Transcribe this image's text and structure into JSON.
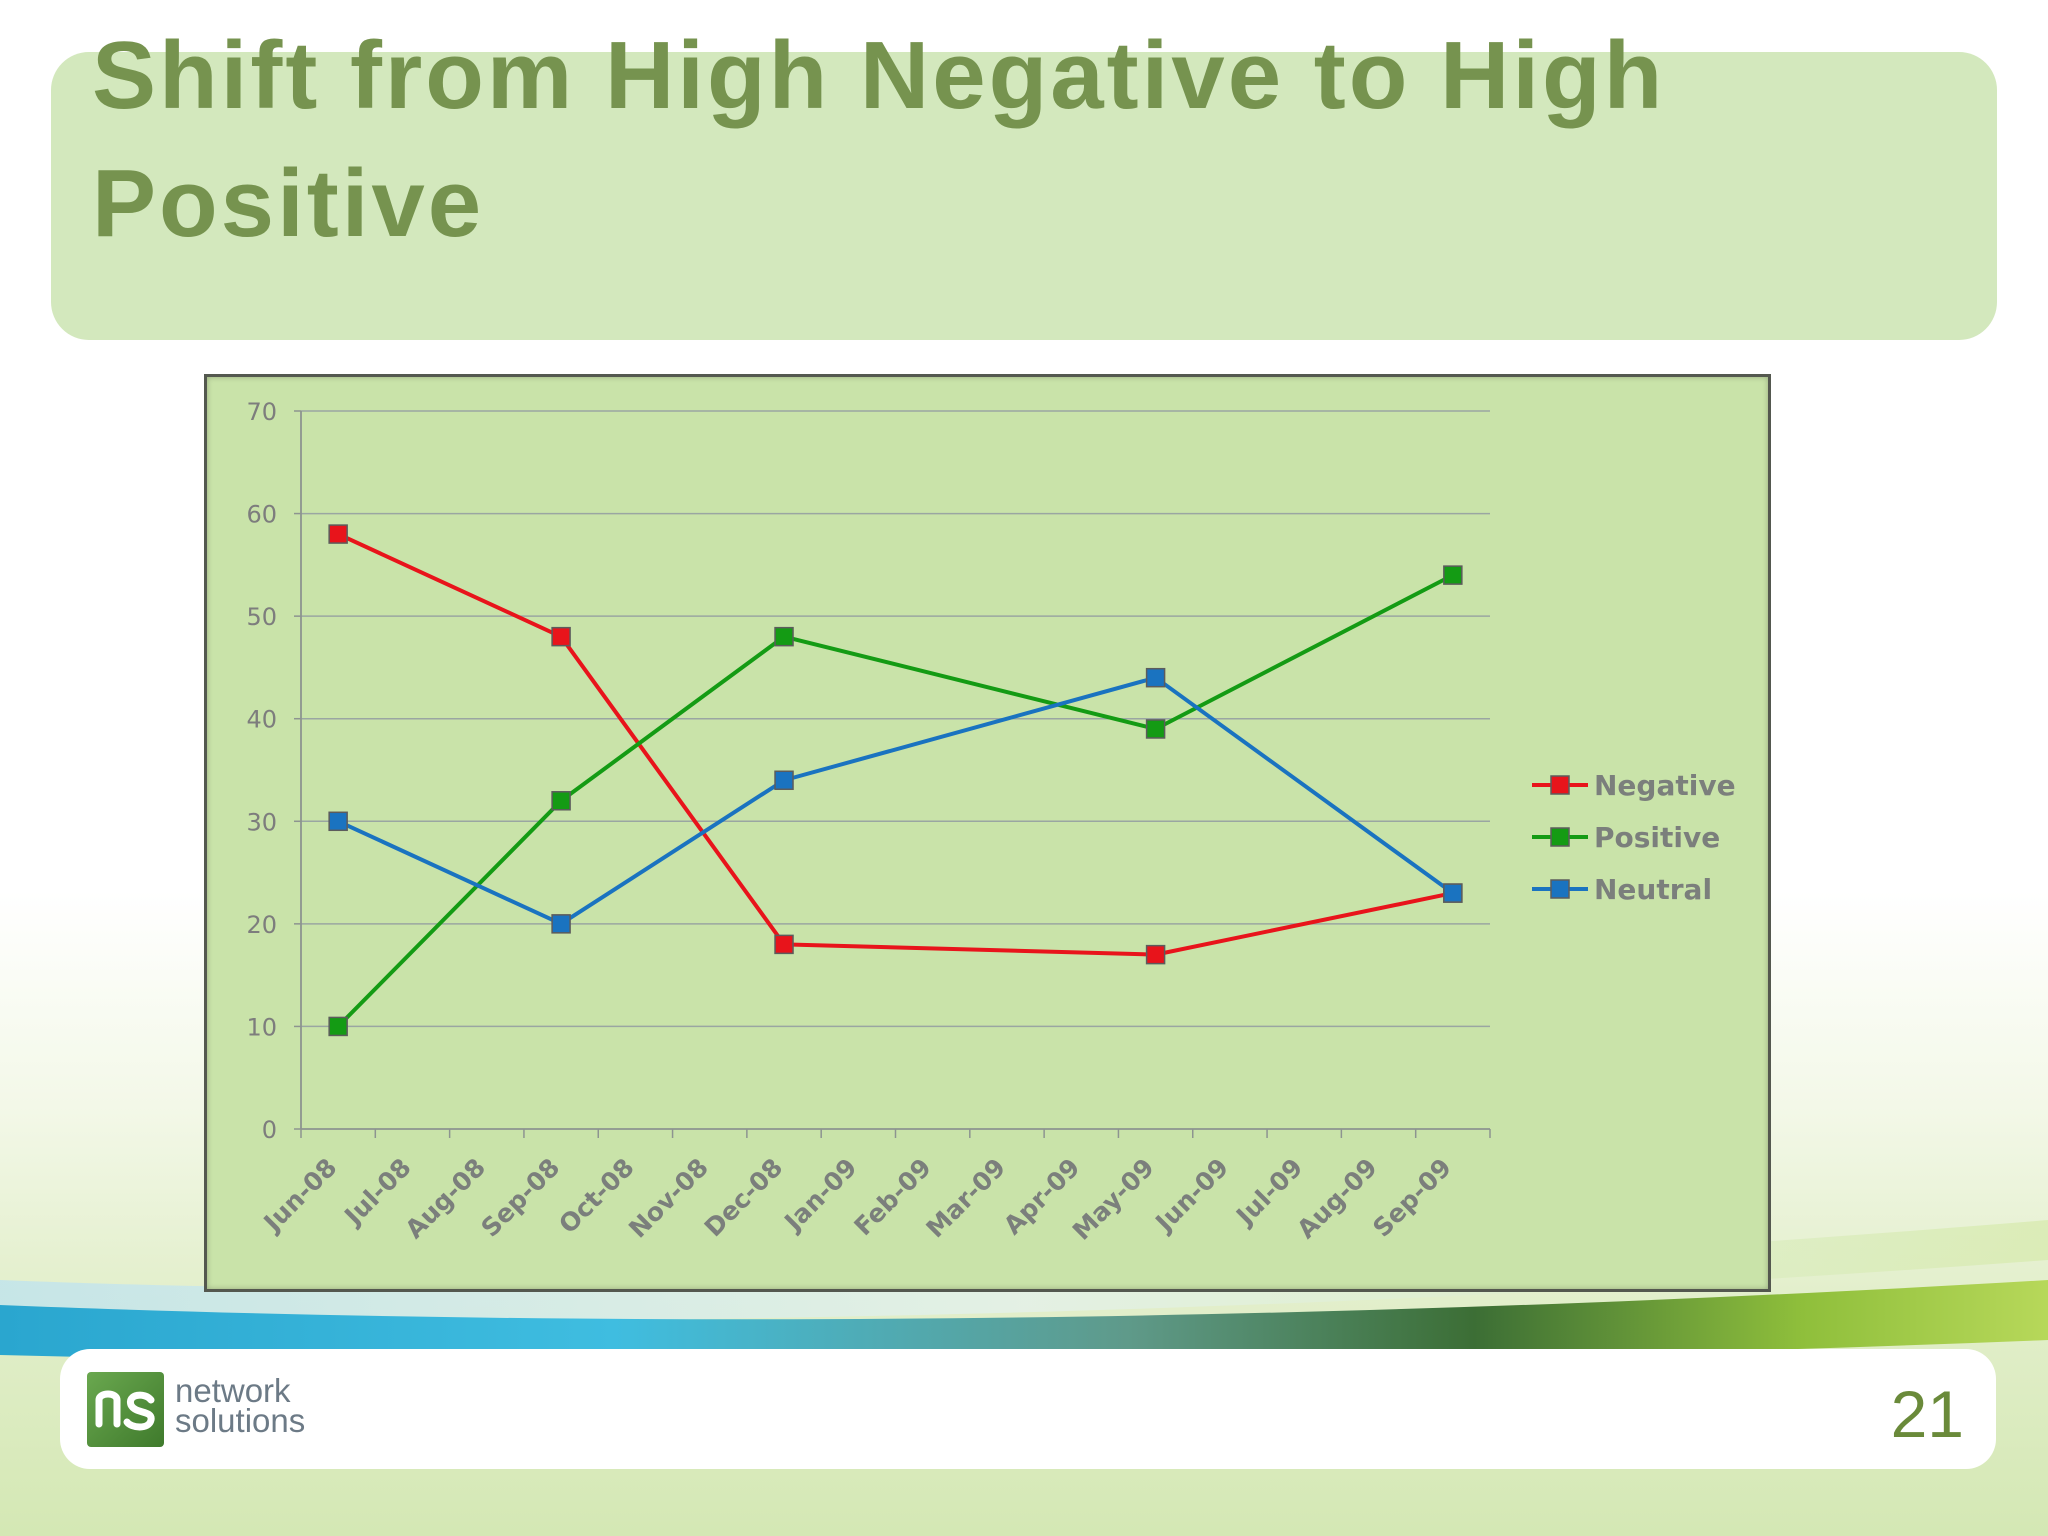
{
  "slide": {
    "title": "Shift from High Negative to High Positive",
    "page_number": "21"
  },
  "logo": {
    "line1": "network",
    "line2": "solutions"
  },
  "colors": {
    "title": "#76934f",
    "title_box": "#d3e8bd",
    "plot_background": "#c9e3a9",
    "negative": "#e8141b",
    "positive": "#149b14",
    "neutral": "#1a73c0"
  },
  "chart_data": {
    "type": "line",
    "title": "",
    "xlabel": "",
    "ylabel": "",
    "categories": [
      "Jun-08",
      "Jul-08",
      "Aug-08",
      "Sep-08",
      "Oct-08",
      "Nov-08",
      "Dec-08",
      "Jan-09",
      "Feb-09",
      "Mar-09",
      "Apr-09",
      "May-09",
      "Jun-09",
      "Jul-09",
      "Aug-09",
      "Sep-09"
    ],
    "y_ticks": [
      0,
      10,
      20,
      30,
      40,
      50,
      60,
      70
    ],
    "ylim": [
      0,
      70
    ],
    "grid": "horizontal",
    "legend": "right",
    "series": [
      {
        "name": "Negative",
        "color": "#e8141b",
        "points": [
          {
            "x": "Jun-08",
            "y": 58
          },
          {
            "x": "Sep-08",
            "y": 48
          },
          {
            "x": "Dec-08",
            "y": 18
          },
          {
            "x": "May-09",
            "y": 17
          },
          {
            "x": "Sep-09",
            "y": 23
          }
        ]
      },
      {
        "name": "Positive",
        "color": "#149b14",
        "points": [
          {
            "x": "Jun-08",
            "y": 10
          },
          {
            "x": "Sep-08",
            "y": 32
          },
          {
            "x": "Dec-08",
            "y": 48
          },
          {
            "x": "May-09",
            "y": 39
          },
          {
            "x": "Sep-09",
            "y": 54
          }
        ]
      },
      {
        "name": "Neutral",
        "color": "#1a73c0",
        "points": [
          {
            "x": "Jun-08",
            "y": 30
          },
          {
            "x": "Sep-08",
            "y": 20
          },
          {
            "x": "Dec-08",
            "y": 34
          },
          {
            "x": "May-09",
            "y": 44
          },
          {
            "x": "Sep-09",
            "y": 23
          }
        ]
      }
    ]
  }
}
